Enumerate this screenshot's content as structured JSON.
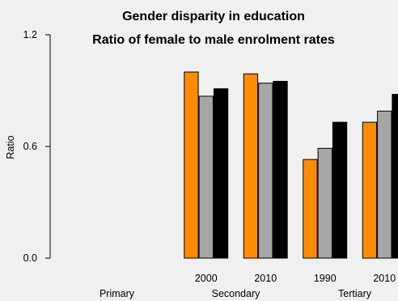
{
  "chart_data": {
    "type": "bar",
    "title": "Gender disparity in education",
    "subtitle": "Ratio of female to male enrolment rates",
    "ylabel": "Ratio",
    "xlabel": "",
    "ylim": [
      0,
      1.2
    ],
    "yticks": [
      "0.0",
      "0.6",
      "1.2"
    ],
    "grid": false,
    "groups": [
      "Primary",
      "Secondary",
      "Tertiary"
    ],
    "categories": [
      {
        "group": "Primary",
        "label": ""
      },
      {
        "group": "Primary",
        "label": ""
      },
      {
        "group": "Secondary",
        "label": "2000"
      },
      {
        "group": "Secondary",
        "label": "2010"
      },
      {
        "group": "Tertiary",
        "label": "1990"
      },
      {
        "group": "Tertiary",
        "label": "2010"
      }
    ],
    "series": [
      {
        "values": [
          null,
          null,
          1.0,
          0.99,
          0.53,
          0.73
        ],
        "color": "#ff8c00"
      },
      {
        "values": [
          null,
          null,
          0.87,
          0.94,
          0.59,
          0.79
        ],
        "color": "#a6a6a6"
      },
      {
        "values": [
          null,
          null,
          0.91,
          0.95,
          0.73,
          0.88
        ],
        "color": "#000000"
      }
    ]
  }
}
